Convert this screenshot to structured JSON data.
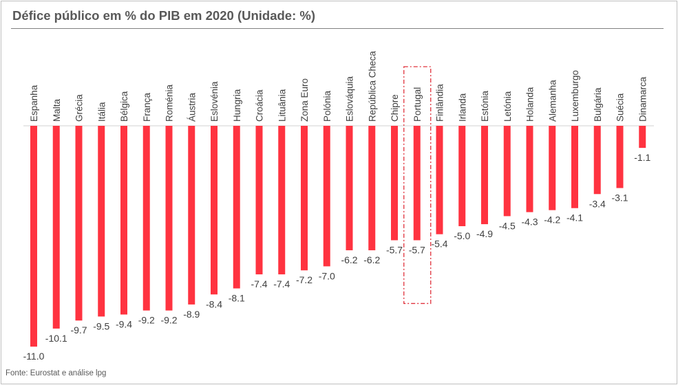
{
  "title": "Défice público em % do PIB em 2020 (Unidade: %)",
  "source": "Fonte: Eurostat e análise lpg",
  "colors": {
    "bar": "#ff3340",
    "highlight_box": "#e0303a",
    "axis": "#d0d0d0",
    "text": "#404040"
  },
  "chart_data": {
    "type": "bar",
    "categories": [
      "Espanha",
      "Malta",
      "Grécia",
      "Itália",
      "Bélgica",
      "França",
      "Roménia",
      "Áustria",
      "Eslovénia",
      "Hungria",
      "Croácia",
      "Lituânia",
      "Zona Euro",
      "Polónia",
      "Eslováquia",
      "República Checa",
      "Chipre",
      "Portugal",
      "Finlândia",
      "Irlanda",
      "Estónia",
      "Letónia",
      "Holanda",
      "Alemanha",
      "Luxemburgo",
      "Bulgária",
      "Suécia",
      "Dinamarca"
    ],
    "values": [
      -11.0,
      -10.1,
      -9.7,
      -9.5,
      -9.4,
      -9.2,
      -9.2,
      -8.9,
      -8.4,
      -8.1,
      -7.4,
      -7.4,
      -7.2,
      -7.0,
      -6.2,
      -6.2,
      -5.7,
      -5.7,
      -5.4,
      -5.0,
      -4.9,
      -4.5,
      -4.3,
      -4.2,
      -4.1,
      -3.4,
      -3.1,
      -1.1
    ],
    "labels": [
      "-11.0",
      "-10.1",
      "-9.7",
      "-9.5",
      "-9.4",
      "-9.2",
      "-9.2",
      "-8.9",
      "-8.4",
      "-8.1",
      "-7.4",
      "-7.4",
      "-7.2",
      "-7.0",
      "-6.2",
      "-6.2",
      "-5.7",
      "-5.7",
      "-5.4",
      "-5.0",
      "-4.9",
      "-4.5",
      "-4.3",
      "-4.2",
      "-4.1",
      "-3.4",
      "-3.1",
      "-1.1"
    ],
    "highlight": "Portugal",
    "ylim": [
      -11.0,
      0
    ],
    "grid": false,
    "legend": "none"
  }
}
